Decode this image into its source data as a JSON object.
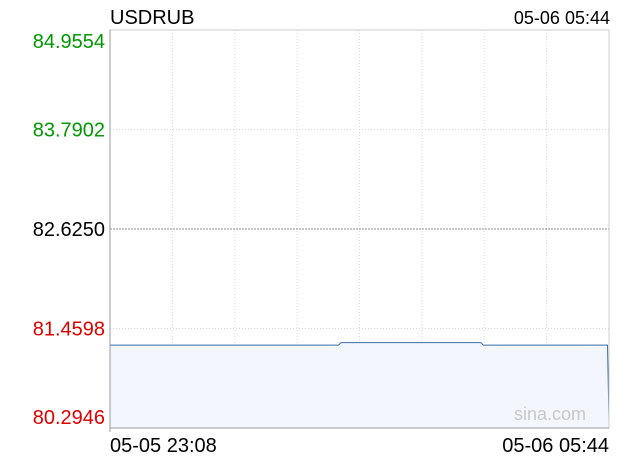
{
  "symbol": "USDRUB",
  "timestamp": "05-06 05:44",
  "watermark": "sina.com",
  "colors": {
    "up": "#009900",
    "neutral": "#000000",
    "down": "#dd0000",
    "line": "#3a6ea5",
    "area": "#f3f6fd",
    "grid": "#d8d8d8",
    "axis": "#cccccc"
  },
  "chart_data": {
    "type": "area",
    "title": "USDRUB",
    "ylim": [
      80.2946,
      84.9554
    ],
    "yticks": [
      {
        "label": "84.9554",
        "value": 84.9554,
        "tone": "up"
      },
      {
        "label": "83.7902",
        "value": 83.7902,
        "tone": "up"
      },
      {
        "label": "82.6250",
        "value": 82.625,
        "tone": "neutral"
      },
      {
        "label": "81.4598",
        "value": 81.4598,
        "tone": "down"
      },
      {
        "label": "80.2946",
        "value": 80.2946,
        "tone": "down"
      }
    ],
    "reference_value": 82.625,
    "xticks": [
      "05-05 23:08",
      "05-06 05:44"
    ],
    "grid": true,
    "series": [
      {
        "points": [
          {
            "t": 0,
            "v": 81.265
          },
          {
            "t": 0.458,
            "v": 81.265
          },
          {
            "t": 0.463,
            "v": 81.295
          },
          {
            "t": 0.743,
            "v": 81.295
          },
          {
            "t": 0.748,
            "v": 81.265
          },
          {
            "t": 0.997,
            "v": 81.265
          },
          {
            "t": 1.0,
            "v": 80.38
          }
        ]
      }
    ]
  }
}
